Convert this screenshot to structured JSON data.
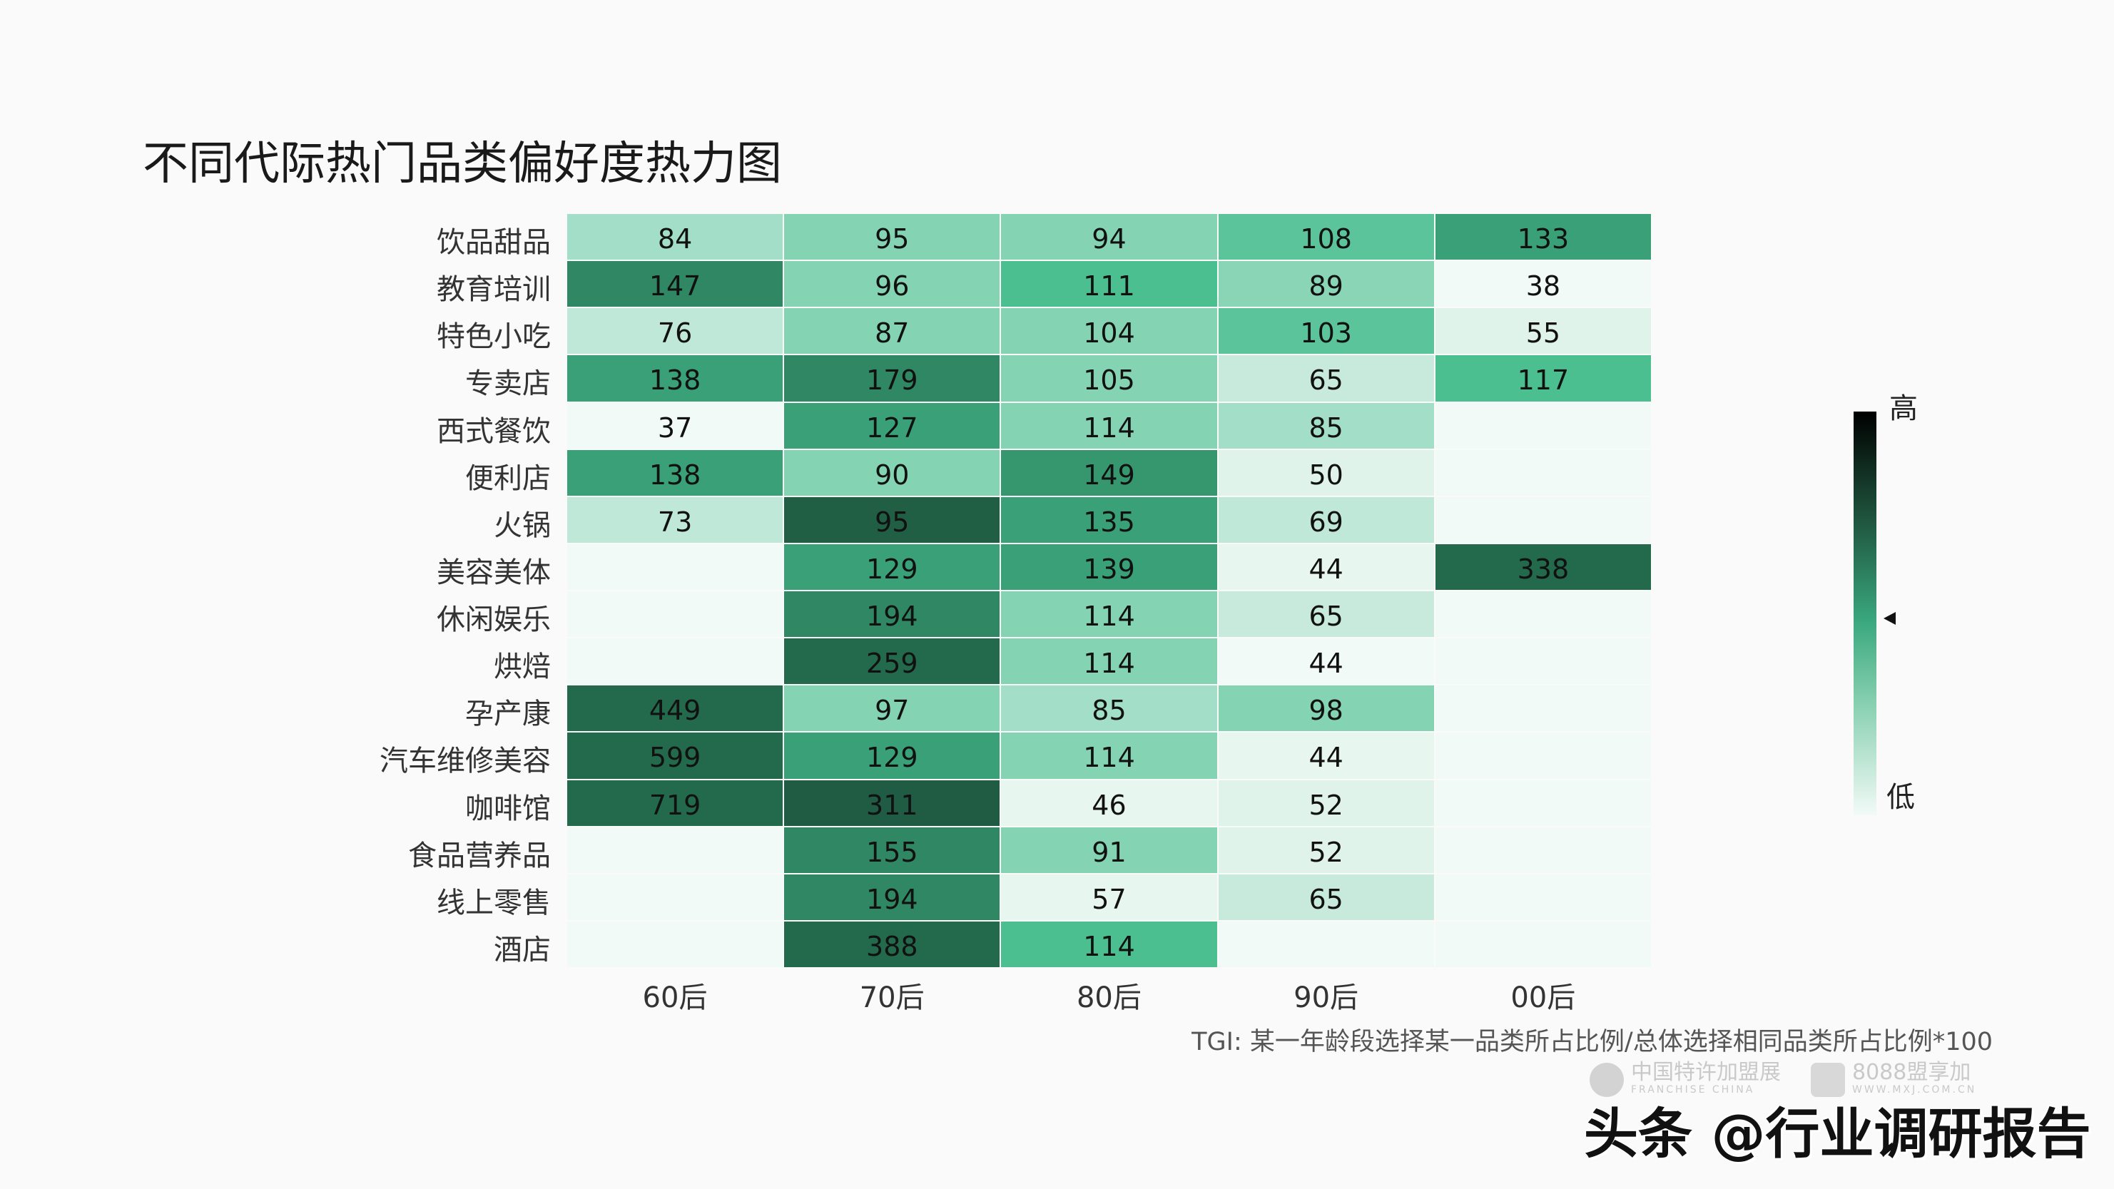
{
  "chart_data": {
    "type": "heatmap",
    "title": "不同代际热门品类偏好度热力图",
    "categories_x": [
      "60后",
      "70后",
      "80后",
      "90后",
      "00后"
    ],
    "categories_y": [
      "饮品甜品",
      "教育培训",
      "特色小吃",
      "专卖店",
      "西式餐饮",
      "便利店",
      "火锅",
      "美容美体",
      "休闲娱乐",
      "烘焙",
      "孕产康",
      "汽车维修美容",
      "咖啡馆",
      "食品营养品",
      "线上零售",
      "酒店"
    ],
    "values": [
      [
        84,
        95,
        94,
        108,
        133
      ],
      [
        147,
        96,
        111,
        89,
        38
      ],
      [
        76,
        87,
        104,
        103,
        55
      ],
      [
        138,
        179,
        105,
        65,
        117
      ],
      [
        37,
        127,
        114,
        85,
        null
      ],
      [
        138,
        90,
        149,
        50,
        null
      ],
      [
        73,
        95,
        135,
        69,
        null
      ],
      [
        null,
        129,
        139,
        44,
        338
      ],
      [
        null,
        194,
        114,
        65,
        null
      ],
      [
        null,
        259,
        114,
        44,
        null
      ],
      [
        449,
        97,
        85,
        98,
        null
      ],
      [
        599,
        129,
        114,
        44,
        null
      ],
      [
        719,
        311,
        46,
        52,
        null
      ],
      [
        null,
        155,
        91,
        52,
        null
      ],
      [
        null,
        194,
        57,
        65,
        null
      ],
      [
        null,
        388,
        114,
        null,
        null
      ]
    ],
    "cell_colors": [
      [
        "#a3dfc8",
        "#84d3b2",
        "#84d3b2",
        "#5cc49a",
        "#3aa077"
      ],
      [
        "#2f8763",
        "#84d3b2",
        "#4bbf90",
        "#8ad5b5",
        "#f2faf7"
      ],
      [
        "#c0e8d8",
        "#84d3b2",
        "#84d3b2",
        "#5cc49a",
        "#dff3ea"
      ],
      [
        "#3aa077",
        "#2f8763",
        "#84d3b2",
        "#c8eadc",
        "#4bbf90"
      ],
      [
        "#f2faf7",
        "#3aa077",
        "#84d3b2",
        "#a3dfc8",
        "#f2faf7"
      ],
      [
        "#3aa077",
        "#84d3b2",
        "#36976f",
        "#dff3ea",
        "#f2faf7"
      ],
      [
        "#c0e8d8",
        "#215f45",
        "#3aa077",
        "#c0e8d8",
        "#f2faf7"
      ],
      [
        "#f2faf7",
        "#3aa077",
        "#3aa077",
        "#e8f6f0",
        "#236a4d"
      ],
      [
        "#f2faf7",
        "#2f8763",
        "#84d3b2",
        "#c8eadc",
        "#f2faf7"
      ],
      [
        "#f2faf7",
        "#236a4d",
        "#84d3b2",
        "#f2faf7",
        "#f2faf7"
      ],
      [
        "#236a4d",
        "#84d3b2",
        "#a3dfc8",
        "#84d3b2",
        "#f2faf7"
      ],
      [
        "#236a4d",
        "#3aa077",
        "#84d3b2",
        "#e8f6f0",
        "#f2faf7"
      ],
      [
        "#236a4d",
        "#1f5c43",
        "#e8f6f0",
        "#dff3ea",
        "#f2faf7"
      ],
      [
        "#f2faf7",
        "#2f8763",
        "#84d3b2",
        "#dff3ea",
        "#f2faf7"
      ],
      [
        "#f2faf7",
        "#2f8763",
        "#e8f6f0",
        "#c8eadc",
        "#f2faf7"
      ],
      [
        "#f2faf7",
        "#236a4d",
        "#4bbf90",
        "#f2faf7",
        "#f2faf7"
      ]
    ],
    "colorbar": {
      "high_label": "高",
      "low_label": "低",
      "high_color": "#000000",
      "mid_color": "#3aa87e",
      "low_color": "#f2faf7"
    },
    "note": "TGI: 某一年龄段选择某一品类所占比例/总体选择相同品类所占比例*100",
    "legend": "right"
  },
  "watermark": {
    "logo1": {
      "text": "中国特许加盟展",
      "subtext": "FRANCHISE CHINA"
    },
    "logo2": {
      "text": "8088盟享加",
      "subtext": "WWW.MXJ.COM.CN"
    },
    "credit": "头条 @行业调研报告"
  }
}
